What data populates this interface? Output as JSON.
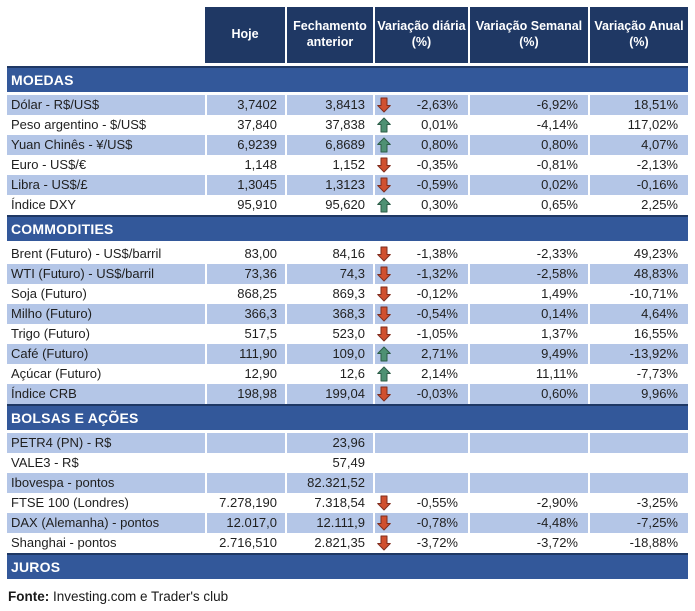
{
  "header": {
    "columns": [
      "Hoje",
      "Fechamento anterior",
      "Variação diária (%)",
      "Variação Semanal (%)",
      "Variação Anual (%)"
    ]
  },
  "sections": [
    {
      "title": "MOEDAS",
      "rows": [
        {
          "label": "Dólar - R$/US$",
          "hoje": "3,7402",
          "fechamento": "3,8413",
          "arrow": "down",
          "diaria": "-2,63%",
          "semanal": "-6,92%",
          "anual": "18,51%"
        },
        {
          "label": "Peso argentino - $/US$",
          "hoje": "37,840",
          "fechamento": "37,838",
          "arrow": "up",
          "diaria": "0,01%",
          "semanal": "-4,14%",
          "anual": "117,02%"
        },
        {
          "label": "Yuan Chinês - ¥/US$",
          "hoje": "6,9239",
          "fechamento": "6,8689",
          "arrow": "up",
          "diaria": "0,80%",
          "semanal": "0,80%",
          "anual": "4,07%"
        },
        {
          "label": "Euro - US$/€",
          "hoje": "1,148",
          "fechamento": "1,152",
          "arrow": "down",
          "diaria": "-0,35%",
          "semanal": "-0,81%",
          "anual": "-2,13%"
        },
        {
          "label": "Libra - US$/£",
          "hoje": "1,3045",
          "fechamento": "1,3123",
          "arrow": "down",
          "diaria": "-0,59%",
          "semanal": "0,02%",
          "anual": "-0,16%"
        },
        {
          "label": "Índice DXY",
          "hoje": "95,910",
          "fechamento": "95,620",
          "arrow": "up",
          "diaria": "0,30%",
          "semanal": "0,65%",
          "anual": "2,25%"
        }
      ]
    },
    {
      "title": "COMMODITIES",
      "rows": [
        {
          "label": "Brent (Futuro) - US$/barril",
          "hoje": "83,00",
          "fechamento": "84,16",
          "arrow": "down",
          "diaria": "-1,38%",
          "semanal": "-2,33%",
          "anual": "49,23%"
        },
        {
          "label": "WTI (Futuro) - US$/barril",
          "hoje": "73,36",
          "fechamento": "74,3",
          "arrow": "down",
          "diaria": "-1,32%",
          "semanal": "-2,58%",
          "anual": "48,83%"
        },
        {
          "label": "Soja (Futuro)",
          "hoje": "868,25",
          "fechamento": "869,3",
          "arrow": "down",
          "diaria": "-0,12%",
          "semanal": "1,49%",
          "anual": "-10,71%"
        },
        {
          "label": "Milho (Futuro)",
          "hoje": "366,3",
          "fechamento": "368,3",
          "arrow": "down",
          "diaria": "-0,54%",
          "semanal": "0,14%",
          "anual": "4,64%"
        },
        {
          "label": "Trigo (Futuro)",
          "hoje": "517,5",
          "fechamento": "523,0",
          "arrow": "down",
          "diaria": "-1,05%",
          "semanal": "1,37%",
          "anual": "16,55%"
        },
        {
          "label": "Café (Futuro)",
          "hoje": "111,90",
          "fechamento": "109,0",
          "arrow": "up",
          "diaria": "2,71%",
          "semanal": "9,49%",
          "anual": "-13,92%"
        },
        {
          "label": "Açúcar (Futuro)",
          "hoje": "12,90",
          "fechamento": "12,6",
          "arrow": "up",
          "diaria": "2,14%",
          "semanal": "11,11%",
          "anual": "-7,73%"
        },
        {
          "label": "Índice CRB",
          "hoje": "198,98",
          "fechamento": "199,04",
          "arrow": "down",
          "diaria": "-0,03%",
          "semanal": "0,60%",
          "anual": "9,96%"
        }
      ]
    },
    {
      "title": "BOLSAS E AÇÕES",
      "rows": [
        {
          "label": "PETR4 (PN) - R$",
          "hoje": "",
          "fechamento": "23,96",
          "arrow": "",
          "diaria": "",
          "semanal": "",
          "anual": ""
        },
        {
          "label": "VALE3 - R$",
          "hoje": "",
          "fechamento": "57,49",
          "arrow": "",
          "diaria": "",
          "semanal": "",
          "anual": ""
        },
        {
          "label": "Ibovespa - pontos",
          "hoje": "",
          "fechamento": "82.321,52",
          "arrow": "",
          "diaria": "",
          "semanal": "",
          "anual": ""
        },
        {
          "label": "FTSE 100 (Londres)",
          "hoje": "7.278,190",
          "fechamento": "7.318,54",
          "arrow": "down",
          "diaria": "-0,55%",
          "semanal": "-2,90%",
          "anual": "-3,25%"
        },
        {
          "label": "DAX (Alemanha) - pontos",
          "hoje": "12.017,0",
          "fechamento": "12.111,9",
          "arrow": "down",
          "diaria": "-0,78%",
          "semanal": "-4,48%",
          "anual": "-7,25%"
        },
        {
          "label": "Shanghai - pontos",
          "hoje": "2.716,510",
          "fechamento": "2.821,35",
          "arrow": "down",
          "diaria": "-3,72%",
          "semanal": "-3,72%",
          "anual": "-18,88%"
        }
      ]
    },
    {
      "title": "JUROS",
      "rows": []
    }
  ],
  "footer": {
    "label": "Fonte:",
    "text": " Investing.com e Trader's club"
  },
  "colors": {
    "header_bg": "#1F3864",
    "section_bg": "#33589A",
    "row_shade": "#B4C6E7",
    "text": "#1f1f1f",
    "arrow_up": "#4E9173",
    "arrow_up_border": "#2C5C47",
    "arrow_down": "#D0502F",
    "arrow_down_border": "#7E2D1E"
  },
  "icons": {
    "up": "up-arrow-icon",
    "down": "down-arrow-icon"
  }
}
